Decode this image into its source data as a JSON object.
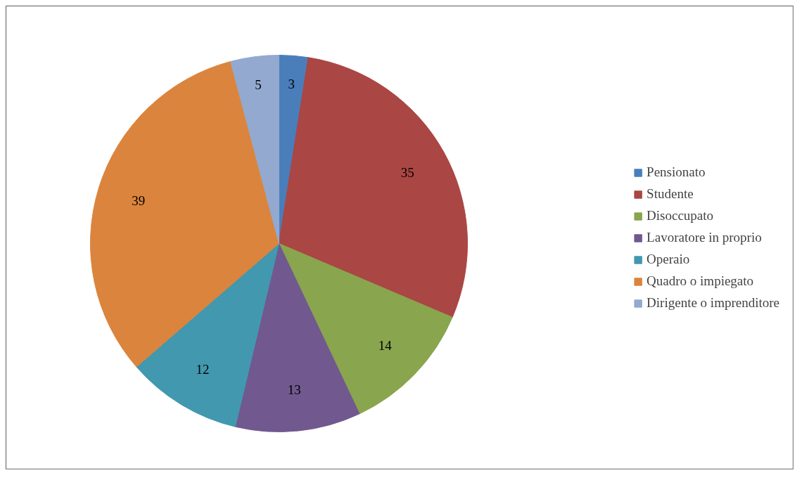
{
  "chart_data": {
    "type": "pie",
    "categories": [
      "Pensionato",
      "Studente",
      "Disoccupato",
      "Lavoratore in proprio",
      "Operaio",
      "Quadro o impiegato",
      "Dirigente o imprenditore"
    ],
    "values": [
      3,
      35,
      14,
      13,
      12,
      39,
      5
    ],
    "colors": [
      "#4a7ebb",
      "#aa4643",
      "#89a54e",
      "#71588f",
      "#4198af",
      "#db843d",
      "#93a9cf"
    ],
    "data_labels": true,
    "legend": "right"
  }
}
